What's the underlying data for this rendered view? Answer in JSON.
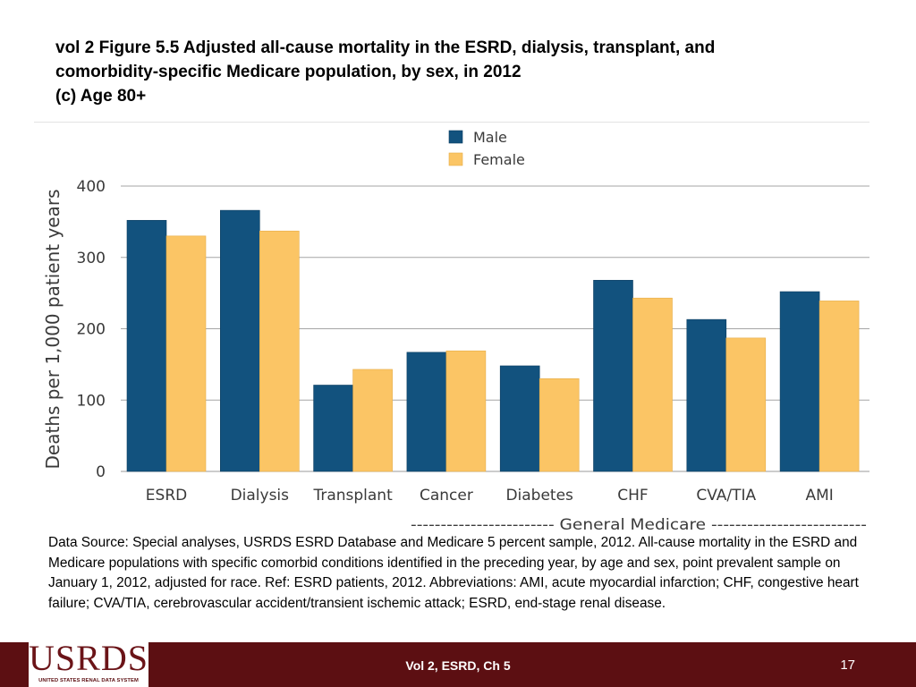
{
  "title": {
    "line1": "vol 2  Figure 5.5 Adjusted all-cause mortality in the ESRD, dialysis, transplant, and",
    "line2": "comorbidity-specific Medicare population, by sex, in 2012",
    "line3": "(c) Age 80+"
  },
  "chart_data": {
    "type": "bar",
    "title": "(c) Age 80+",
    "ylabel": "Deaths per 1,000 patient years",
    "xlabel": "",
    "ylim": [
      0,
      400
    ],
    "yticks": [
      0,
      100,
      200,
      300,
      400
    ],
    "ytick_labels": [
      "0",
      "100",
      "200",
      "300",
      "400"
    ],
    "grid": true,
    "legend_position": "top-center",
    "categories": [
      "ESRD",
      "Dialysis",
      "Transplant",
      "Cancer",
      "Diabetes",
      "CHF",
      "CVA/TIA",
      "AMI"
    ],
    "series": [
      {
        "name": "Male",
        "color": "#12527e",
        "values": [
          352,
          366,
          121,
          167,
          148,
          268,
          213,
          252
        ]
      },
      {
        "name": "Female",
        "color": "#fbc565",
        "values": [
          330,
          337,
          143,
          169,
          130,
          243,
          187,
          239
        ]
      }
    ],
    "group_annotation": "------------------------  General Medicare --------------------------"
  },
  "source_text": "Data Source: Special analyses, USRDS ESRD Database and Medicare 5 percent sample, 2012. All-cause mortality in the ESRD and Medicare populations with specific comorbid conditions identified in the preceding year, by age and sex, point prevalent sample on January 1, 2012, adjusted for race. Ref: ESRD patients, 2012. Abbreviations: AMI, acute myocardial infarction; CHF, congestive heart failure; CVA/TIA, cerebrovascular accident/transient ischemic attack; ESRD, end-stage renal disease.",
  "footer": {
    "logo_text": "USRDS",
    "logo_subtext": "UNITED STATES RENAL DATA SYSTEM",
    "center_text": "Vol 2, ESRD, Ch 5",
    "page_number": "17"
  }
}
